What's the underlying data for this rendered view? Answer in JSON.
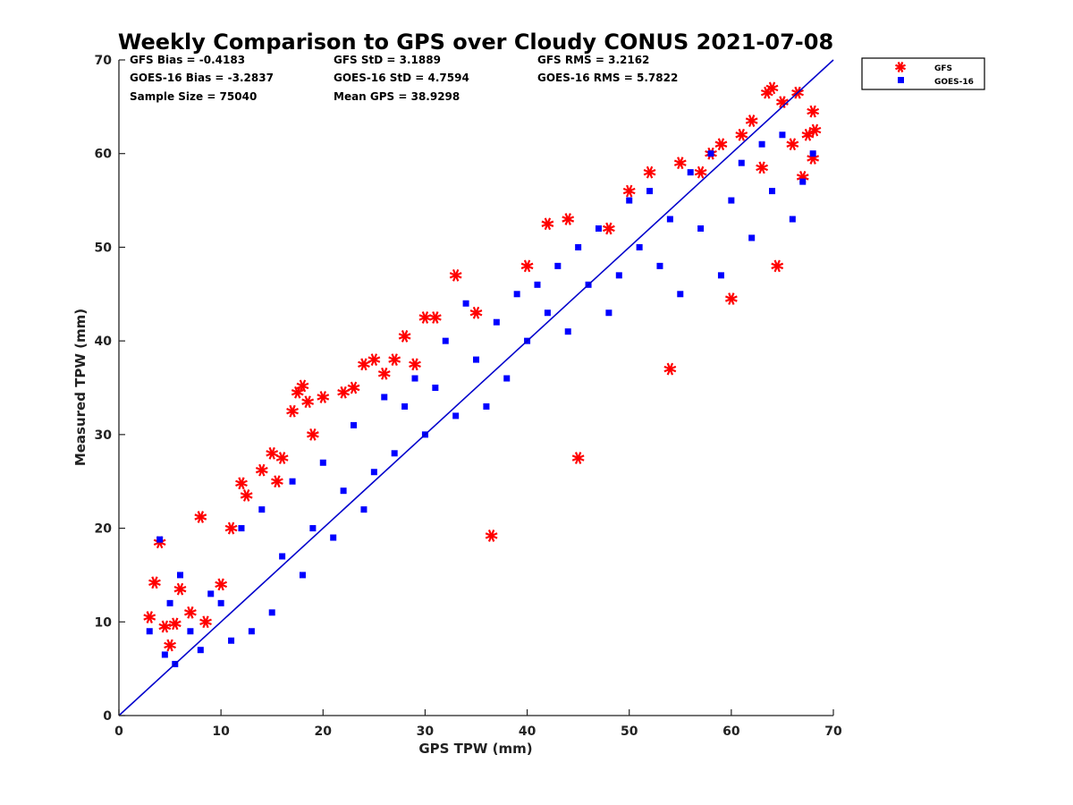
{
  "chart_data": {
    "type": "scatter",
    "title": "Weekly Comparison to GPS over Cloudy CONUS 2021-07-08",
    "xlabel": "GPS TPW (mm)",
    "ylabel": "Measured TPW (mm)",
    "xlim": [
      0,
      70
    ],
    "ylim": [
      0,
      70
    ],
    "xticks": [
      "0",
      "10",
      "20",
      "30",
      "40",
      "50",
      "60",
      "70"
    ],
    "yticks": [
      "0",
      "10",
      "20",
      "30",
      "40",
      "50",
      "60",
      "70"
    ],
    "grid": false,
    "legend_position": "outside-top-right",
    "reference_line": {
      "x": [
        0,
        70
      ],
      "y": [
        0,
        70
      ],
      "color": "#0000cc"
    },
    "stats": {
      "gfs_bias": "GFS Bias = -0.4183",
      "goes_bias": "GOES-16 Bias = -3.2837",
      "sample_size": "Sample Size = 75040",
      "gfs_std": "GFS StD = 3.1889",
      "goes_std": "GOES-16 StD = 4.7594",
      "mean_gps": "Mean GPS = 38.9298",
      "gfs_rms": "GFS RMS = 3.2162",
      "goes_rms": "GOES-16 RMS = 5.7822"
    },
    "series": [
      {
        "name": "GFS",
        "marker": "asterisk",
        "color": "#ff0000",
        "x": [
          3,
          3.5,
          4,
          4.5,
          5,
          5.5,
          6,
          7,
          8,
          8.5,
          10,
          11,
          12,
          12.5,
          14,
          15,
          15.5,
          16,
          17,
          17.5,
          18,
          18.5,
          19,
          20,
          22,
          23,
          24,
          25,
          26,
          27,
          28,
          29,
          30,
          31,
          33,
          35,
          36.5,
          40,
          42,
          44,
          45,
          48,
          50,
          52,
          54,
          55,
          57,
          58,
          59,
          60,
          61,
          62,
          63,
          63.5,
          64,
          64.5,
          65,
          66,
          66.5,
          67,
          67.5,
          68,
          68,
          68.2
        ],
        "y": [
          10.5,
          14.2,
          18.5,
          9.5,
          7.5,
          9.8,
          13.5,
          11,
          21.2,
          10,
          14,
          20,
          24.8,
          23.5,
          26.2,
          28,
          25,
          27.5,
          32.5,
          34.5,
          35.2,
          33.5,
          30,
          34,
          34.5,
          35,
          37.5,
          38,
          36.5,
          38,
          40.5,
          37.5,
          42.5,
          42.5,
          47,
          43,
          19.2,
          48,
          52.5,
          53,
          27.5,
          52,
          56,
          58,
          37,
          59,
          58,
          60,
          61,
          44.5,
          62,
          63.5,
          58.5,
          66.5,
          67,
          48,
          65.5,
          61,
          66.5,
          57.5,
          62,
          64.5,
          59.5,
          62.5
        ]
      },
      {
        "name": "GOES-16",
        "marker": "square",
        "color": "#0000ff",
        "x": [
          3,
          4,
          4.5,
          5,
          5.5,
          6,
          7,
          8,
          9,
          10,
          11,
          12,
          13,
          14,
          15,
          16,
          17,
          18,
          19,
          20,
          21,
          22,
          23,
          24,
          25,
          26,
          27,
          28,
          29,
          30,
          31,
          32,
          33,
          34,
          35,
          36,
          37,
          38,
          39,
          40,
          41,
          42,
          43,
          44,
          45,
          46,
          47,
          48,
          49,
          50,
          51,
          52,
          53,
          54,
          55,
          56,
          57,
          58,
          59,
          60,
          61,
          62,
          63,
          64,
          65,
          66,
          67,
          68
        ],
        "y": [
          9,
          18.8,
          6.5,
          12,
          5.5,
          15,
          9,
          7,
          13,
          12,
          8,
          20,
          9,
          22,
          11,
          17,
          25,
          15,
          20,
          27,
          19,
          24,
          31,
          22,
          26,
          34,
          28,
          33,
          36,
          30,
          35,
          40,
          32,
          44,
          38,
          33,
          42,
          36,
          45,
          40,
          46,
          43,
          48,
          41,
          50,
          46,
          52,
          43,
          47,
          55,
          50,
          56,
          48,
          53,
          45,
          58,
          52,
          60,
          47,
          55,
          59,
          51,
          61,
          56,
          62,
          53,
          57,
          60
        ]
      }
    ]
  }
}
